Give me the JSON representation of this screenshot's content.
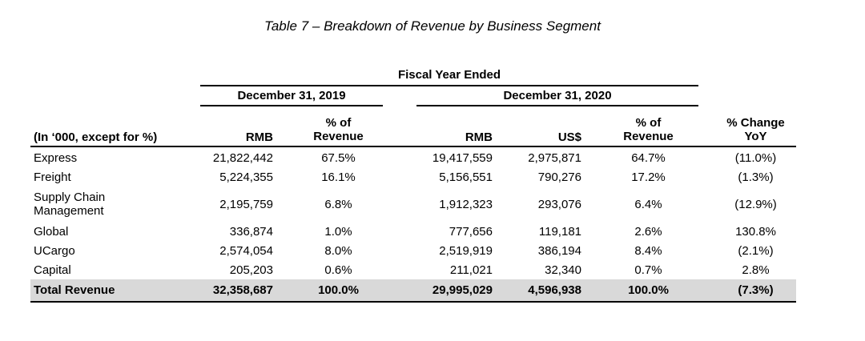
{
  "title": "Table 7 – Breakdown of Revenue by Business Segment",
  "header": {
    "fiscal_year": "Fiscal Year Ended",
    "period_2019": "December 31, 2019",
    "period_2020": "December 31, 2020",
    "col_unit": "(In ‘000, except for %)",
    "col_rmb_2019": "RMB",
    "col_pct_2019_line1": "% of",
    "col_pct_2019_line2": "Revenue",
    "col_rmb_2020": "RMB",
    "col_us_2020": "US$",
    "col_pct_2020_line1": "% of",
    "col_pct_2020_line2": "Revenue",
    "col_change_line1": "% Change",
    "col_change_line2": "YoY"
  },
  "rows": [
    {
      "label": "Express",
      "rmb_2019": "21,822,442",
      "pct_2019": "67.5%",
      "rmb_2020": "19,417,559",
      "us_2020": "2,975,871",
      "pct_2020": "64.7%",
      "change": "(11.0%)"
    },
    {
      "label": "Freight",
      "rmb_2019": "5,224,355",
      "pct_2019": "16.1%",
      "rmb_2020": "5,156,551",
      "us_2020": "790,276",
      "pct_2020": "17.2%",
      "change": "(1.3%)"
    },
    {
      "label": "Supply Chain Management",
      "rmb_2019": "2,195,759",
      "pct_2019": "6.8%",
      "rmb_2020": "1,912,323",
      "us_2020": "293,076",
      "pct_2020": "6.4%",
      "change": "(12.9%)"
    },
    {
      "label": "Global",
      "rmb_2019": "336,874",
      "pct_2019": "1.0%",
      "rmb_2020": "777,656",
      "us_2020": "119,181",
      "pct_2020": "2.6%",
      "change": "130.8%"
    },
    {
      "label": "UCargo",
      "rmb_2019": "2,574,054",
      "pct_2019": "8.0%",
      "rmb_2020": "2,519,919",
      "us_2020": "386,194",
      "pct_2020": "8.4%",
      "change": "(2.1%)"
    },
    {
      "label": "Capital",
      "rmb_2019": "205,203",
      "pct_2019": "0.6%",
      "rmb_2020": "211,021",
      "us_2020": "32,340",
      "pct_2020": "0.7%",
      "change": "2.8%"
    }
  ],
  "total": {
    "label": "Total Revenue",
    "rmb_2019": "32,358,687",
    "pct_2019": "100.0%",
    "rmb_2020": "29,995,029",
    "us_2020": "4,596,938",
    "pct_2020": "100.0%",
    "change": "(7.3%)"
  }
}
